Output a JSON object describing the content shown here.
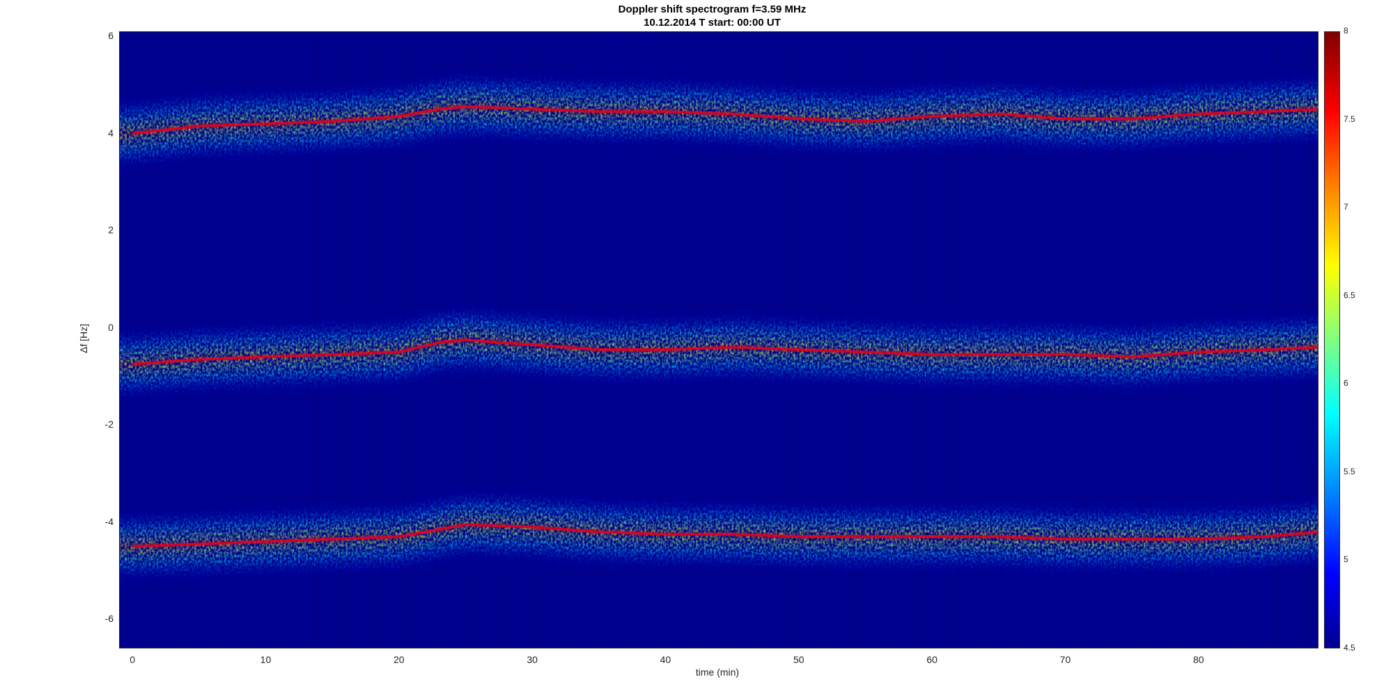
{
  "chart_data": {
    "type": "heatmap",
    "title": "Doppler shift spectrogram f=3.59 MHz",
    "subtitle": "10.12.2014    T start: 00:00 UT",
    "xlabel": "time (min)",
    "ylabel": "Δf [Hz]",
    "xlim": [
      -1,
      89
    ],
    "ylim": [
      -6.6,
      6.1
    ],
    "x_ticks": [
      0,
      10,
      20,
      30,
      40,
      50,
      60,
      70,
      80
    ],
    "y_ticks": [
      6,
      4,
      2,
      0,
      -2,
      -4,
      -6
    ],
    "colormap": "jet",
    "colorbar": {
      "range": [
        4.5,
        8
      ],
      "ticks": [
        "8",
        "7.5",
        "7",
        "6.5",
        "6",
        "5.5",
        "5",
        "4.5"
      ]
    },
    "series": [
      {
        "x": [
          0,
          5,
          10,
          15,
          20,
          23,
          25,
          30,
          35,
          40,
          45,
          50,
          55,
          60,
          65,
          70,
          75,
          80,
          85,
          89
        ],
        "values": [
          4.0,
          4.15,
          4.2,
          4.25,
          4.35,
          4.5,
          4.55,
          4.5,
          4.45,
          4.45,
          4.4,
          4.3,
          4.25,
          4.35,
          4.4,
          4.3,
          4.3,
          4.4,
          4.45,
          4.5
        ]
      },
      {
        "x": [
          0,
          5,
          10,
          15,
          20,
          23,
          25,
          30,
          35,
          40,
          45,
          50,
          55,
          60,
          65,
          70,
          75,
          80,
          85,
          89
        ],
        "values": [
          -0.75,
          -0.65,
          -0.6,
          -0.55,
          -0.5,
          -0.3,
          -0.25,
          -0.35,
          -0.45,
          -0.45,
          -0.4,
          -0.45,
          -0.5,
          -0.55,
          -0.55,
          -0.55,
          -0.6,
          -0.5,
          -0.45,
          -0.4
        ]
      },
      {
        "x": [
          0,
          5,
          10,
          15,
          20,
          23,
          25,
          30,
          35,
          40,
          45,
          50,
          55,
          60,
          65,
          70,
          75,
          80,
          85,
          89
        ],
        "values": [
          -4.5,
          -4.45,
          -4.4,
          -4.35,
          -4.3,
          -4.15,
          -4.05,
          -4.1,
          -4.2,
          -4.25,
          -4.25,
          -4.3,
          -4.3,
          -4.3,
          -4.3,
          -4.35,
          -4.35,
          -4.35,
          -4.3,
          -4.2
        ]
      }
    ]
  }
}
